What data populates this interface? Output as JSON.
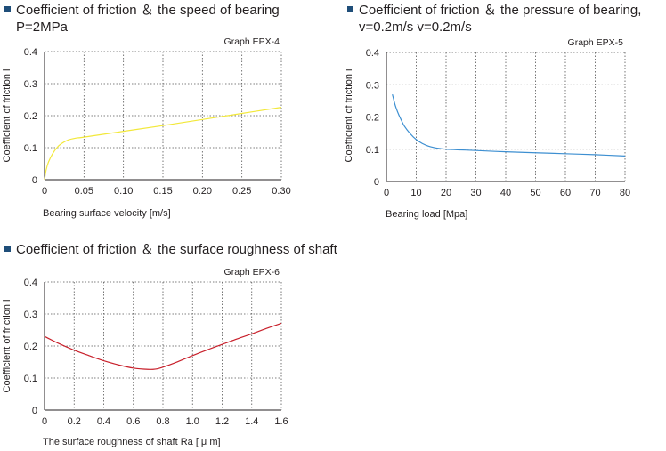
{
  "chart_data": [
    {
      "id": "epx4",
      "type": "line",
      "heading": [
        "Coefficient of friction ＆ the speed of bearing",
        "P=2MPa"
      ],
      "graph_label": "Graph  EPX-4",
      "xlabel": "Bearing surface velocity  [m/s]",
      "ylabel": "Coefficient  of  friction   i",
      "xlim": [
        0,
        0.3
      ],
      "ylim": [
        0,
        0.4
      ],
      "xticks": [
        "0",
        "0.05",
        "0.10",
        "0.15",
        "0.20",
        "0.25",
        "0.30"
      ],
      "yticks": [
        "0",
        "0.1",
        "0.2",
        "0.3",
        "0.4"
      ],
      "grid": true,
      "color": "#f2e83a",
      "series": [
        {
          "x": [
            0,
            0.002,
            0.005,
            0.01,
            0.015,
            0.02,
            0.03,
            0.04,
            0.05,
            0.1,
            0.15,
            0.2,
            0.25,
            0.3
          ],
          "y": [
            0,
            0.03,
            0.055,
            0.08,
            0.098,
            0.11,
            0.124,
            0.13,
            0.133,
            0.151,
            0.169,
            0.188,
            0.207,
            0.226
          ]
        }
      ]
    },
    {
      "id": "epx5",
      "type": "line",
      "heading": [
        "Coefficient of friction  ＆  the pressure of bearing,",
        "v=0.2m/s v=0.2m/s"
      ],
      "graph_label": "Graph  EPX-5",
      "xlabel": "Bearing load  [Mpa]",
      "ylabel": "Coefficient  of  friction   i",
      "xlim": [
        0,
        80
      ],
      "ylim": [
        0,
        0.4
      ],
      "xticks": [
        "0",
        "10",
        "20",
        "30",
        "40",
        "50",
        "60",
        "70",
        "80"
      ],
      "yticks": [
        "0",
        "0.1",
        "0.2",
        "0.3",
        "0.4"
      ],
      "grid": true,
      "color": "#3d8fd1",
      "series": [
        {
          "x": [
            2,
            3,
            4,
            5,
            6,
            8,
            10,
            12,
            14,
            16,
            18,
            20,
            25,
            30,
            40,
            50,
            60,
            70,
            80
          ],
          "y": [
            0.27,
            0.235,
            0.21,
            0.19,
            0.172,
            0.148,
            0.13,
            0.118,
            0.11,
            0.105,
            0.102,
            0.1,
            0.098,
            0.096,
            0.092,
            0.089,
            0.086,
            0.083,
            0.079
          ]
        }
      ]
    },
    {
      "id": "epx6",
      "type": "line",
      "heading": [
        "Coefficient of friction ＆ the surface roughness of shaft"
      ],
      "graph_label": "Graph  EPX-6",
      "xlabel": "The surface roughness of shaft  Ra [ μ m]",
      "ylabel": "Coefficient  of  friction   i",
      "xlim": [
        0,
        1.6
      ],
      "ylim": [
        0,
        0.4
      ],
      "xticks": [
        "0",
        "0.2",
        "0.4",
        "0.6",
        "0.8",
        "1.0",
        "1.2",
        "1.4",
        "1.6"
      ],
      "yticks": [
        "0",
        "0.1",
        "0.2",
        "0.3",
        "0.4"
      ],
      "grid": true,
      "color": "#c8202b",
      "series": [
        {
          "x": [
            0,
            0.1,
            0.2,
            0.3,
            0.4,
            0.5,
            0.6,
            0.7,
            0.75,
            0.8,
            0.9,
            1.0,
            1.1,
            1.2,
            1.3,
            1.4,
            1.5,
            1.6
          ],
          "y": [
            0.23,
            0.207,
            0.187,
            0.17,
            0.154,
            0.141,
            0.131,
            0.127,
            0.128,
            0.134,
            0.151,
            0.17,
            0.188,
            0.205,
            0.222,
            0.238,
            0.255,
            0.271
          ]
        }
      ]
    }
  ]
}
